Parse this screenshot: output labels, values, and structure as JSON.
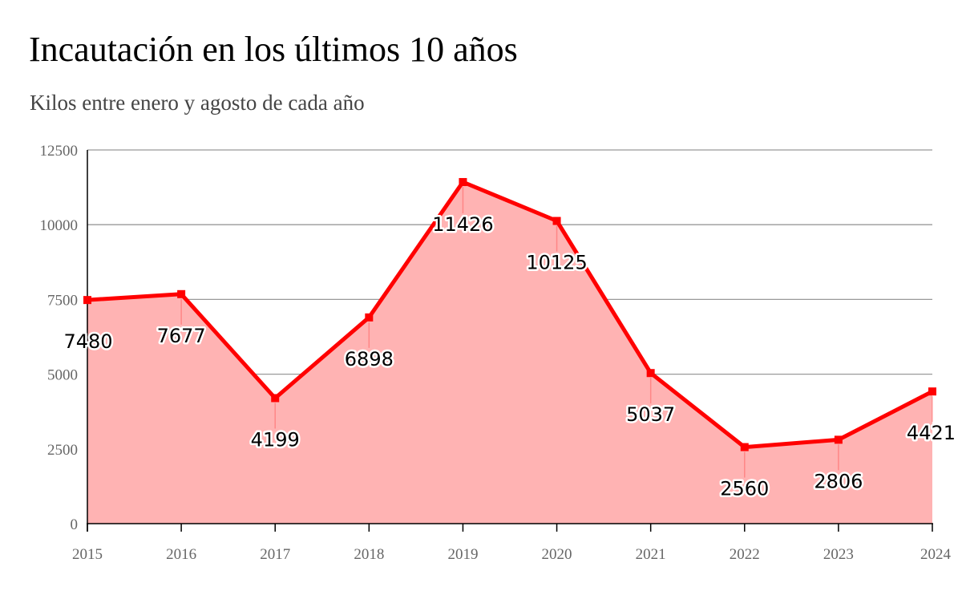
{
  "title": "Incautación en los últimos 10 años",
  "subtitle": "Kilos entre enero y agosto de cada año",
  "colors": {
    "line": "#ff0000",
    "area": "#ffb3b3",
    "grid": "#999999",
    "axis": "#000000"
  },
  "chart_data": {
    "type": "area",
    "title": "Incautación en los últimos 10 años",
    "subtitle": "Kilos entre enero y agosto de cada año",
    "xlabel": "",
    "ylabel": "",
    "categories": [
      "2015",
      "2016",
      "2017",
      "2018",
      "2019",
      "2020",
      "2021",
      "2022",
      "2023",
      "2024"
    ],
    "series": [
      {
        "values": [
          7480,
          7677,
          4199,
          6898,
          11426,
          10125,
          5037,
          2560,
          2806,
          4421
        ]
      }
    ],
    "data_labels": [
      "7480",
      "7677",
      "4199",
      "6898",
      "11426",
      "10125",
      "5037",
      "2560",
      "2806",
      "4421"
    ],
    "ylim": [
      0,
      12500
    ],
    "yticks": [
      "0",
      "2500",
      "5000",
      "7500",
      "10000",
      "12500"
    ],
    "grid": true,
    "legend": "none"
  }
}
